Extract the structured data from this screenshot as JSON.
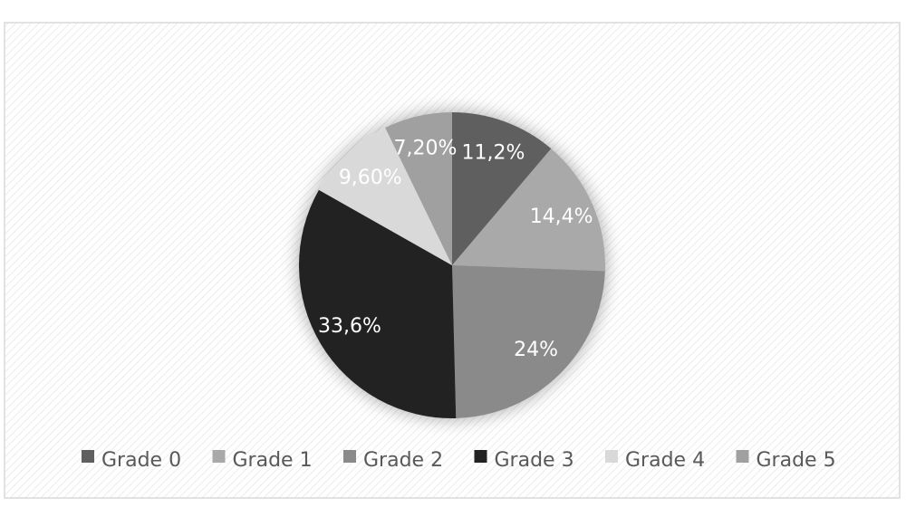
{
  "chart_data": {
    "type": "pie",
    "categories": [
      "Grade 0",
      "Grade 1",
      "Grade 2",
      "Grade 3",
      "Grade 4",
      "Grade 5"
    ],
    "values": [
      11.2,
      14.4,
      24,
      33.6,
      9.6,
      7.2
    ],
    "value_labels": [
      "11,2%",
      "14,4%",
      "24%",
      "33,6%",
      "9,60%",
      "7,20%"
    ],
    "colors": [
      "#5f5f5f",
      "#a9a9a9",
      "#8a8a8a",
      "#222222",
      "#d9d9d9",
      "#a0a0a0"
    ],
    "legend": "bottom"
  }
}
